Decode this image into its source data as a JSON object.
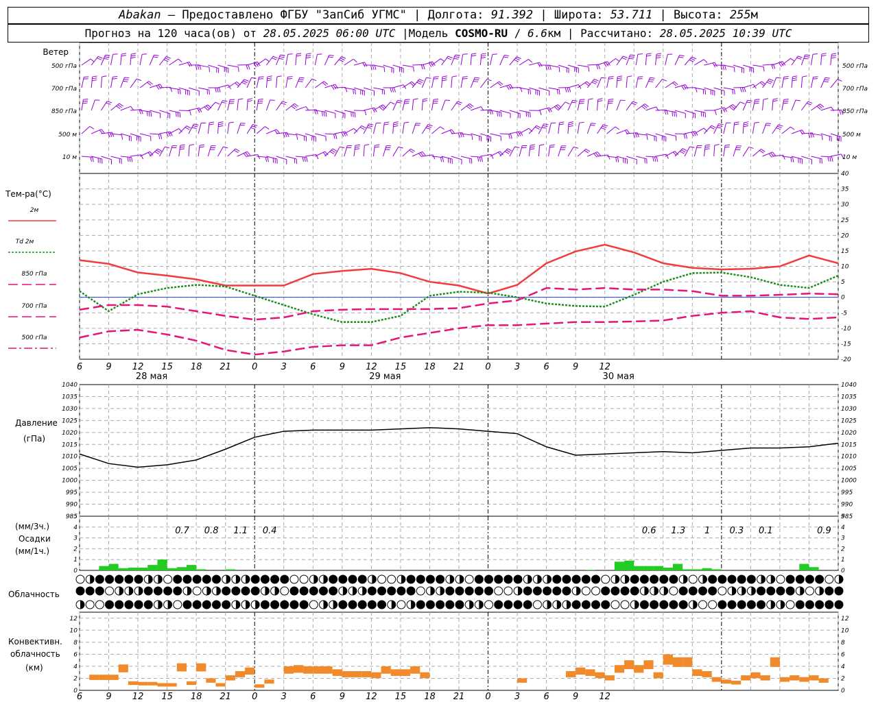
{
  "header": {
    "city": "Abakan",
    "provider": "Предоставлено ФГБУ \"ЗапСиб УГМС\"",
    "lon_label": "Долгота:",
    "lon": "91.392",
    "lat_label": "Широта:",
    "lat": "53.711",
    "alt_label": "Высота:",
    "alt": "255",
    "alt_unit": "м",
    "dash": "–",
    "sep": "|",
    "forecast_label": "Прогноз на 120 часа(ов) от",
    "forecast_from": "28.05.2025 06:00 UTC",
    "model_label": "Модель",
    "model": "COSMO-RU",
    "resolution": "6.6",
    "res_unit": "км",
    "calc_label": "Рассчитано:",
    "calc_time": "28.05.2025 10:39 UTC"
  },
  "wind_panel": {
    "title": "Ветер",
    "levels": [
      "500 гПа",
      "700 гПа",
      "850 гПа",
      "500 м",
      "10 м"
    ],
    "barb_color": "#9400d3"
  },
  "temp_panel": {
    "title": "Тем-ра(°С)",
    "legend": [
      {
        "label": "2м",
        "color": "#f03c3c",
        "style": "solid"
      },
      {
        "label": "Td 2м",
        "color": "#1e8c1e",
        "style": "dotted"
      },
      {
        "label": "850 гПа",
        "color": "#e6147a",
        "style": "dash"
      },
      {
        "label": "700 гПа",
        "color": "#e6147a",
        "style": "dash"
      },
      {
        "label": "500 гПа",
        "color": "#e6147a",
        "style": "dashdot"
      }
    ],
    "ticks": [
      "40",
      "35",
      "30",
      "25",
      "20",
      "15",
      "10",
      "5",
      "0",
      "-5",
      "-10",
      "-15",
      "-20"
    ],
    "x_ticks": [
      "6",
      "9",
      "12",
      "15",
      "18",
      "21",
      "0",
      "3",
      "6",
      "9",
      "12",
      "15",
      "18",
      "21",
      "0",
      "3",
      "6",
      "9",
      "12"
    ],
    "dates": [
      "28 мая",
      "29 мая",
      "30 мая"
    ]
  },
  "pressure_panel": {
    "title": "Давление",
    "unit": "(гПа)",
    "ticks": [
      "1040",
      "1035",
      "1030",
      "1025",
      "1020",
      "1015",
      "1010",
      "1005",
      "1000",
      "995",
      "990",
      "985"
    ]
  },
  "precip_panel": {
    "unit1": "(мм/3ч.)",
    "title": "Осадки",
    "unit2": "(мм/1ч.)",
    "ticks": [
      "5",
      "4",
      "3",
      "2",
      "1",
      "0"
    ],
    "amount_labels": [
      {
        "h": 9,
        "text": "0.7"
      },
      {
        "h": 12,
        "text": "0.8"
      },
      {
        "h": 15,
        "text": "1.1"
      },
      {
        "h": 18,
        "text": "0.4"
      },
      {
        "h": 57,
        "text": "0.6"
      },
      {
        "h": 60,
        "text": "1.3"
      },
      {
        "h": 63,
        "text": "1"
      },
      {
        "h": 66,
        "text": "0.3"
      },
      {
        "h": 69,
        "text": "0.1"
      },
      {
        "h": 75,
        "text": "0.9"
      }
    ],
    "bar_color": "#22cc22"
  },
  "cloud_panel": {
    "title": "Облачность"
  },
  "conv_panel": {
    "title1": "Конвективн.",
    "title2": "облачность",
    "unit": "(км)",
    "ticks": [
      "12",
      "10",
      "8",
      "6",
      "4",
      "2",
      "0"
    ],
    "bar_color": "#f08a2a"
  },
  "chart_data": {
    "type": "line",
    "x_unit": "hours from 28.05.2025 06:00 UTC",
    "x_range": [
      0,
      78
    ],
    "series": [
      {
        "name": "2м",
        "panel": "temperature",
        "x": [
          0,
          3,
          6,
          9,
          12,
          15,
          18,
          21,
          24,
          27,
          30,
          33,
          36,
          39,
          42,
          45,
          48,
          51,
          54,
          57,
          60,
          63,
          66,
          69,
          72,
          75,
          78
        ],
        "values": [
          12,
          10.8,
          8,
          7,
          5.8,
          3.8,
          3.8,
          3.8,
          7.5,
          8.5,
          9.2,
          7.8,
          5,
          3.8,
          1.2,
          4,
          11,
          14.8,
          17,
          14.5,
          11,
          9.5,
          9,
          9.2,
          10,
          13.5,
          11
        ]
      },
      {
        "name": "Td 2м",
        "panel": "temperature",
        "x": [
          0,
          3,
          6,
          9,
          12,
          15,
          18,
          21,
          24,
          27,
          30,
          33,
          36,
          39,
          42,
          45,
          48,
          51,
          54,
          57,
          60,
          63,
          66,
          69,
          72,
          75,
          78
        ],
        "values": [
          2,
          -4.5,
          1,
          3,
          4,
          3.5,
          0.5,
          -2.5,
          -5.5,
          -8,
          -8,
          -6,
          0.5,
          1.8,
          1.5,
          0,
          -2,
          -2.8,
          -3,
          0.8,
          5,
          7.8,
          8,
          6.5,
          4,
          3,
          7
        ]
      },
      {
        "name": "850 гПа",
        "panel": "temperature",
        "x": [
          0,
          3,
          6,
          9,
          12,
          15,
          18,
          21,
          24,
          27,
          30,
          33,
          36,
          39,
          42,
          45,
          48,
          51,
          54,
          57,
          60,
          63,
          66,
          69,
          72,
          75,
          78
        ],
        "values": [
          -4,
          -2.5,
          -2.5,
          -3,
          -4.5,
          -6,
          -7.2,
          -6.5,
          -4.5,
          -4,
          -3.8,
          -3.8,
          -3.8,
          -3.5,
          -2,
          -1,
          3,
          2.5,
          3,
          2.5,
          2.5,
          2,
          0.5,
          0.5,
          0.8,
          1.2,
          1
        ]
      },
      {
        "name": "700 гПа",
        "panel": "temperature",
        "x": [
          0,
          3,
          6,
          9,
          12,
          15,
          18,
          21,
          24,
          27,
          30,
          33,
          36,
          39,
          42,
          45,
          48,
          51,
          54,
          57,
          60,
          63,
          66,
          69,
          72,
          75,
          78
        ],
        "values": [
          -13,
          -11,
          -10.5,
          -12,
          -14,
          -17,
          -18.5,
          -17.5,
          -16,
          -15.5,
          -15.5,
          -13,
          -11.5,
          -10,
          -9,
          -9,
          -8.5,
          -8,
          -8,
          -7.8,
          -7.5,
          -6,
          -5,
          -4.5,
          -6.5,
          -7,
          -6.5
        ]
      },
      {
        "name": "Давление",
        "panel": "pressure",
        "x": [
          0,
          3,
          6,
          9,
          12,
          15,
          18,
          21,
          24,
          27,
          30,
          33,
          36,
          39,
          42,
          45,
          48,
          51,
          54,
          57,
          60,
          63,
          66,
          69,
          72,
          75,
          78
        ],
        "values": [
          1011,
          1007,
          1005.5,
          1006.5,
          1008.5,
          1013,
          1018,
          1020.5,
          1021,
          1021,
          1021,
          1021.5,
          1022,
          1021.5,
          1020.5,
          1019.5,
          1014,
          1010.5,
          1011,
          1011.5,
          1012,
          1011.5,
          1012.5,
          1013.5,
          1013.5,
          1014,
          1015.5
        ]
      }
    ],
    "temp_ylim": [
      -20,
      40
    ],
    "pressure_ylim": [
      985,
      1040
    ],
    "precip": {
      "ylim": [
        0,
        5
      ],
      "x": [
        1,
        2,
        3,
        4,
        5,
        6,
        7,
        8,
        9,
        10,
        11,
        12,
        13,
        14,
        15,
        16,
        17,
        18,
        19,
        20,
        21,
        22,
        23,
        24,
        25,
        50,
        51,
        52,
        53,
        54,
        55,
        56,
        57,
        58,
        59,
        60,
        61,
        62,
        63,
        64,
        65,
        66,
        67,
        68,
        69,
        70,
        71,
        72,
        73,
        74,
        75,
        76,
        77,
        78
      ],
      "values": [
        0,
        0,
        0.4,
        0.6,
        0.2,
        0.25,
        0.25,
        0.5,
        1,
        0.2,
        0.3,
        0.5,
        0.1,
        0,
        0,
        0.1,
        0,
        0,
        0,
        0,
        0,
        0,
        0,
        0,
        0,
        0,
        0,
        0,
        0.05,
        0,
        0,
        0.8,
        0.9,
        0.4,
        0.4,
        0.4,
        0.25,
        0.6,
        0.1,
        0.1,
        0.2,
        0.1,
        0,
        0,
        0,
        0,
        0,
        0,
        0,
        0,
        0.6,
        0.3,
        0,
        0
      ]
    },
    "convective": {
      "ylim": [
        0,
        13
      ],
      "bars": [
        [
          1,
          2,
          2.6
        ],
        [
          2,
          3,
          2.6
        ],
        [
          3,
          4,
          2.6
        ],
        [
          4,
          5,
          4.3
        ],
        [
          5,
          6,
          1.5
        ],
        [
          6,
          7,
          1.4
        ],
        [
          7,
          8,
          1.4
        ],
        [
          8,
          9,
          1.2
        ],
        [
          9,
          10,
          1.2
        ],
        [
          10,
          11,
          4.5
        ],
        [
          11,
          12,
          1.5
        ],
        [
          12,
          13,
          4.5
        ],
        [
          13,
          14,
          2
        ],
        [
          14,
          15,
          1.2
        ],
        [
          15,
          16,
          2.5
        ],
        [
          16,
          17,
          3.2
        ],
        [
          17,
          18,
          3.8
        ],
        [
          18,
          19,
          1
        ],
        [
          19,
          20,
          1.8
        ],
        [
          21,
          22,
          4
        ],
        [
          22,
          23,
          4.2
        ],
        [
          23,
          24,
          4
        ],
        [
          24,
          25,
          4
        ],
        [
          25,
          26,
          4
        ],
        [
          26,
          27,
          3.5
        ],
        [
          27,
          28,
          3.2
        ],
        [
          28,
          29,
          3.2
        ],
        [
          29,
          30,
          3.2
        ],
        [
          30,
          31,
          3
        ],
        [
          31,
          32,
          4
        ],
        [
          32,
          33,
          3.5
        ],
        [
          33,
          34,
          3.5
        ],
        [
          34,
          35,
          4
        ],
        [
          35,
          36,
          3
        ],
        [
          45,
          46,
          2
        ],
        [
          50,
          51,
          3.2
        ],
        [
          51,
          52,
          3.8
        ],
        [
          52,
          53,
          3.5
        ],
        [
          53,
          54,
          3
        ],
        [
          54,
          55,
          2.5
        ],
        [
          55,
          56,
          4.2
        ],
        [
          56,
          57,
          5
        ],
        [
          57,
          58,
          4.2
        ],
        [
          58,
          59,
          5
        ],
        [
          59,
          60,
          3
        ],
        [
          60,
          61,
          6
        ],
        [
          61,
          62,
          5.5
        ],
        [
          62,
          63,
          5.5
        ],
        [
          63,
          64,
          3.5
        ],
        [
          64,
          65,
          3.2
        ],
        [
          65,
          66,
          2.2
        ],
        [
          66,
          67,
          1.8
        ],
        [
          67,
          68,
          1.6
        ],
        [
          68,
          69,
          2.5
        ],
        [
          69,
          70,
          3
        ],
        [
          70,
          71,
          2.5
        ],
        [
          71,
          72,
          5.5
        ],
        [
          72,
          73,
          2.2
        ],
        [
          73,
          74,
          2.5
        ],
        [
          74,
          75,
          2.2
        ],
        [
          75,
          76,
          2.5
        ],
        [
          76,
          77,
          2
        ]
      ]
    }
  }
}
